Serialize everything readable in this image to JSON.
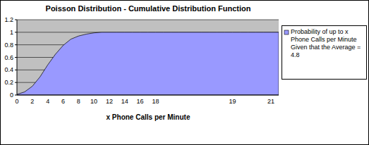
{
  "chart_data": {
    "type": "area",
    "title": "Poisson Distribution - Cumulative Distribution Function",
    "x_label": "x Phone Calls per Minute",
    "categories": [
      "0",
      null,
      "2",
      null,
      "4",
      null,
      "6",
      null,
      "8",
      null,
      "10",
      null,
      "12",
      null,
      "14",
      null,
      "16",
      null,
      "18",
      null,
      null,
      null,
      null,
      null,
      null,
      null,
      null,
      null,
      "19",
      null,
      null,
      null,
      null,
      "21",
      null
    ],
    "series": [
      {
        "name": "Probability of up to x Phone Calls per Minute Given that the Average = 4.8",
        "color": "#9999ff",
        "values": [
          0.01,
          0.05,
          0.14,
          0.29,
          0.48,
          0.65,
          0.79,
          0.89,
          0.94,
          0.97,
          0.99,
          1,
          1,
          1,
          1,
          1,
          1,
          1,
          1,
          1,
          1,
          1,
          1,
          1,
          1,
          1,
          1,
          1,
          1,
          1,
          1,
          1,
          1,
          1,
          1
        ]
      }
    ],
    "ylim": [
      0,
      1.2
    ],
    "yticks": [
      0,
      0.2,
      0.4,
      0.6,
      0.8,
      1,
      1.2
    ],
    "grid": true,
    "legend": "right"
  }
}
